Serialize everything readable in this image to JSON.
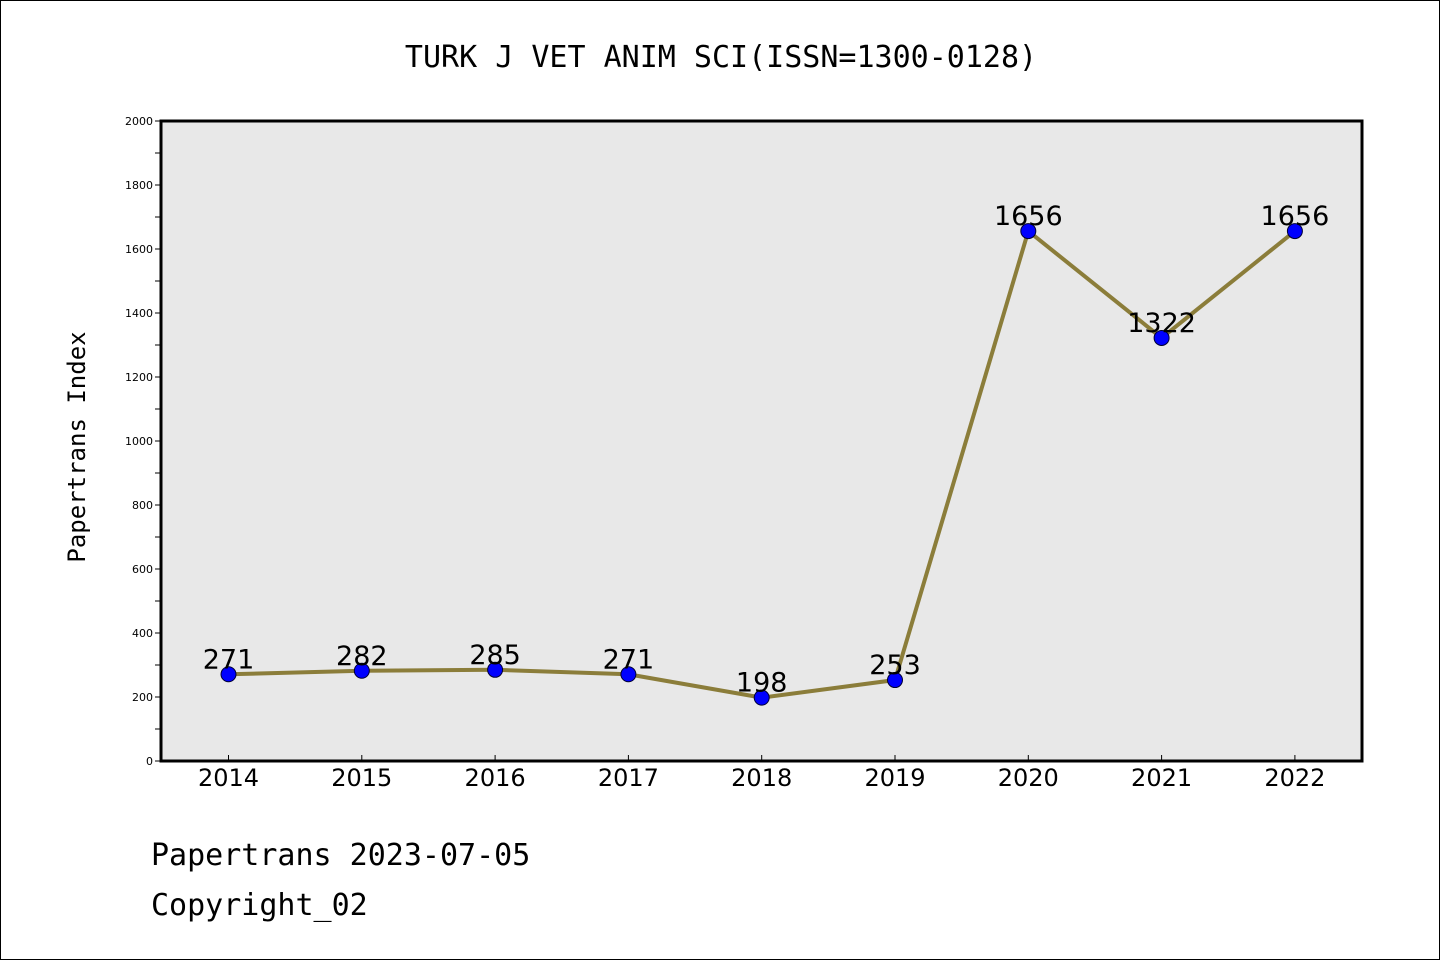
{
  "chart_data": {
    "type": "line",
    "title": "TURK J VET ANIM SCI(ISSN=1300-0128)",
    "xlabel": "",
    "ylabel": "Papertrans Index",
    "categories": [
      "2014",
      "2015",
      "2016",
      "2017",
      "2018",
      "2019",
      "2020",
      "2021",
      "2022"
    ],
    "values": [
      271,
      282,
      285,
      271,
      198,
      253,
      1656,
      1322,
      1656
    ],
    "data_labels": [
      "271",
      "282",
      "285",
      "271",
      "198",
      "253",
      "1656",
      "1322",
      "1656"
    ],
    "ylim": [
      0,
      2000
    ],
    "yticks": [
      "0",
      "200",
      "400",
      "600",
      "800",
      "1000",
      "1200",
      "1400",
      "1600",
      "1800",
      "2000"
    ],
    "ytick_values": [
      0,
      200,
      400,
      600,
      800,
      1000,
      1200,
      1400,
      1600,
      1800,
      2000
    ],
    "grid": false,
    "legend": "none",
    "colors": {
      "line": "#8b7d3a",
      "marker": "#0000ff",
      "plot_background": "#e8e8e8"
    }
  },
  "footer": {
    "line1": "Papertrans 2023-07-05",
    "line2": "Copyright_02"
  }
}
